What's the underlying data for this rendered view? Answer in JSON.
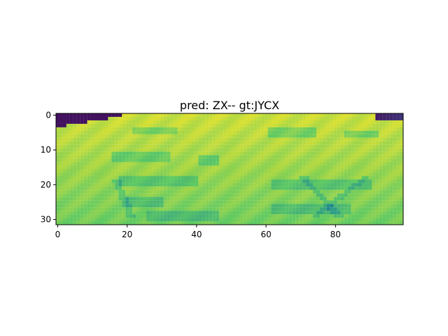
{
  "chart_data": {
    "type": "heatmap",
    "title": "pred: ZX-- gt:JYCX",
    "colormap": "viridis",
    "image_shape": [
      32,
      100
    ],
    "x_ticks": [
      0,
      20,
      40,
      60,
      80
    ],
    "y_ticks": [
      0,
      10,
      20,
      30
    ],
    "xlim": [
      -0.5,
      99.5
    ],
    "ylim": [
      31.5,
      -0.5
    ],
    "origin": "upper",
    "grid": false
  }
}
